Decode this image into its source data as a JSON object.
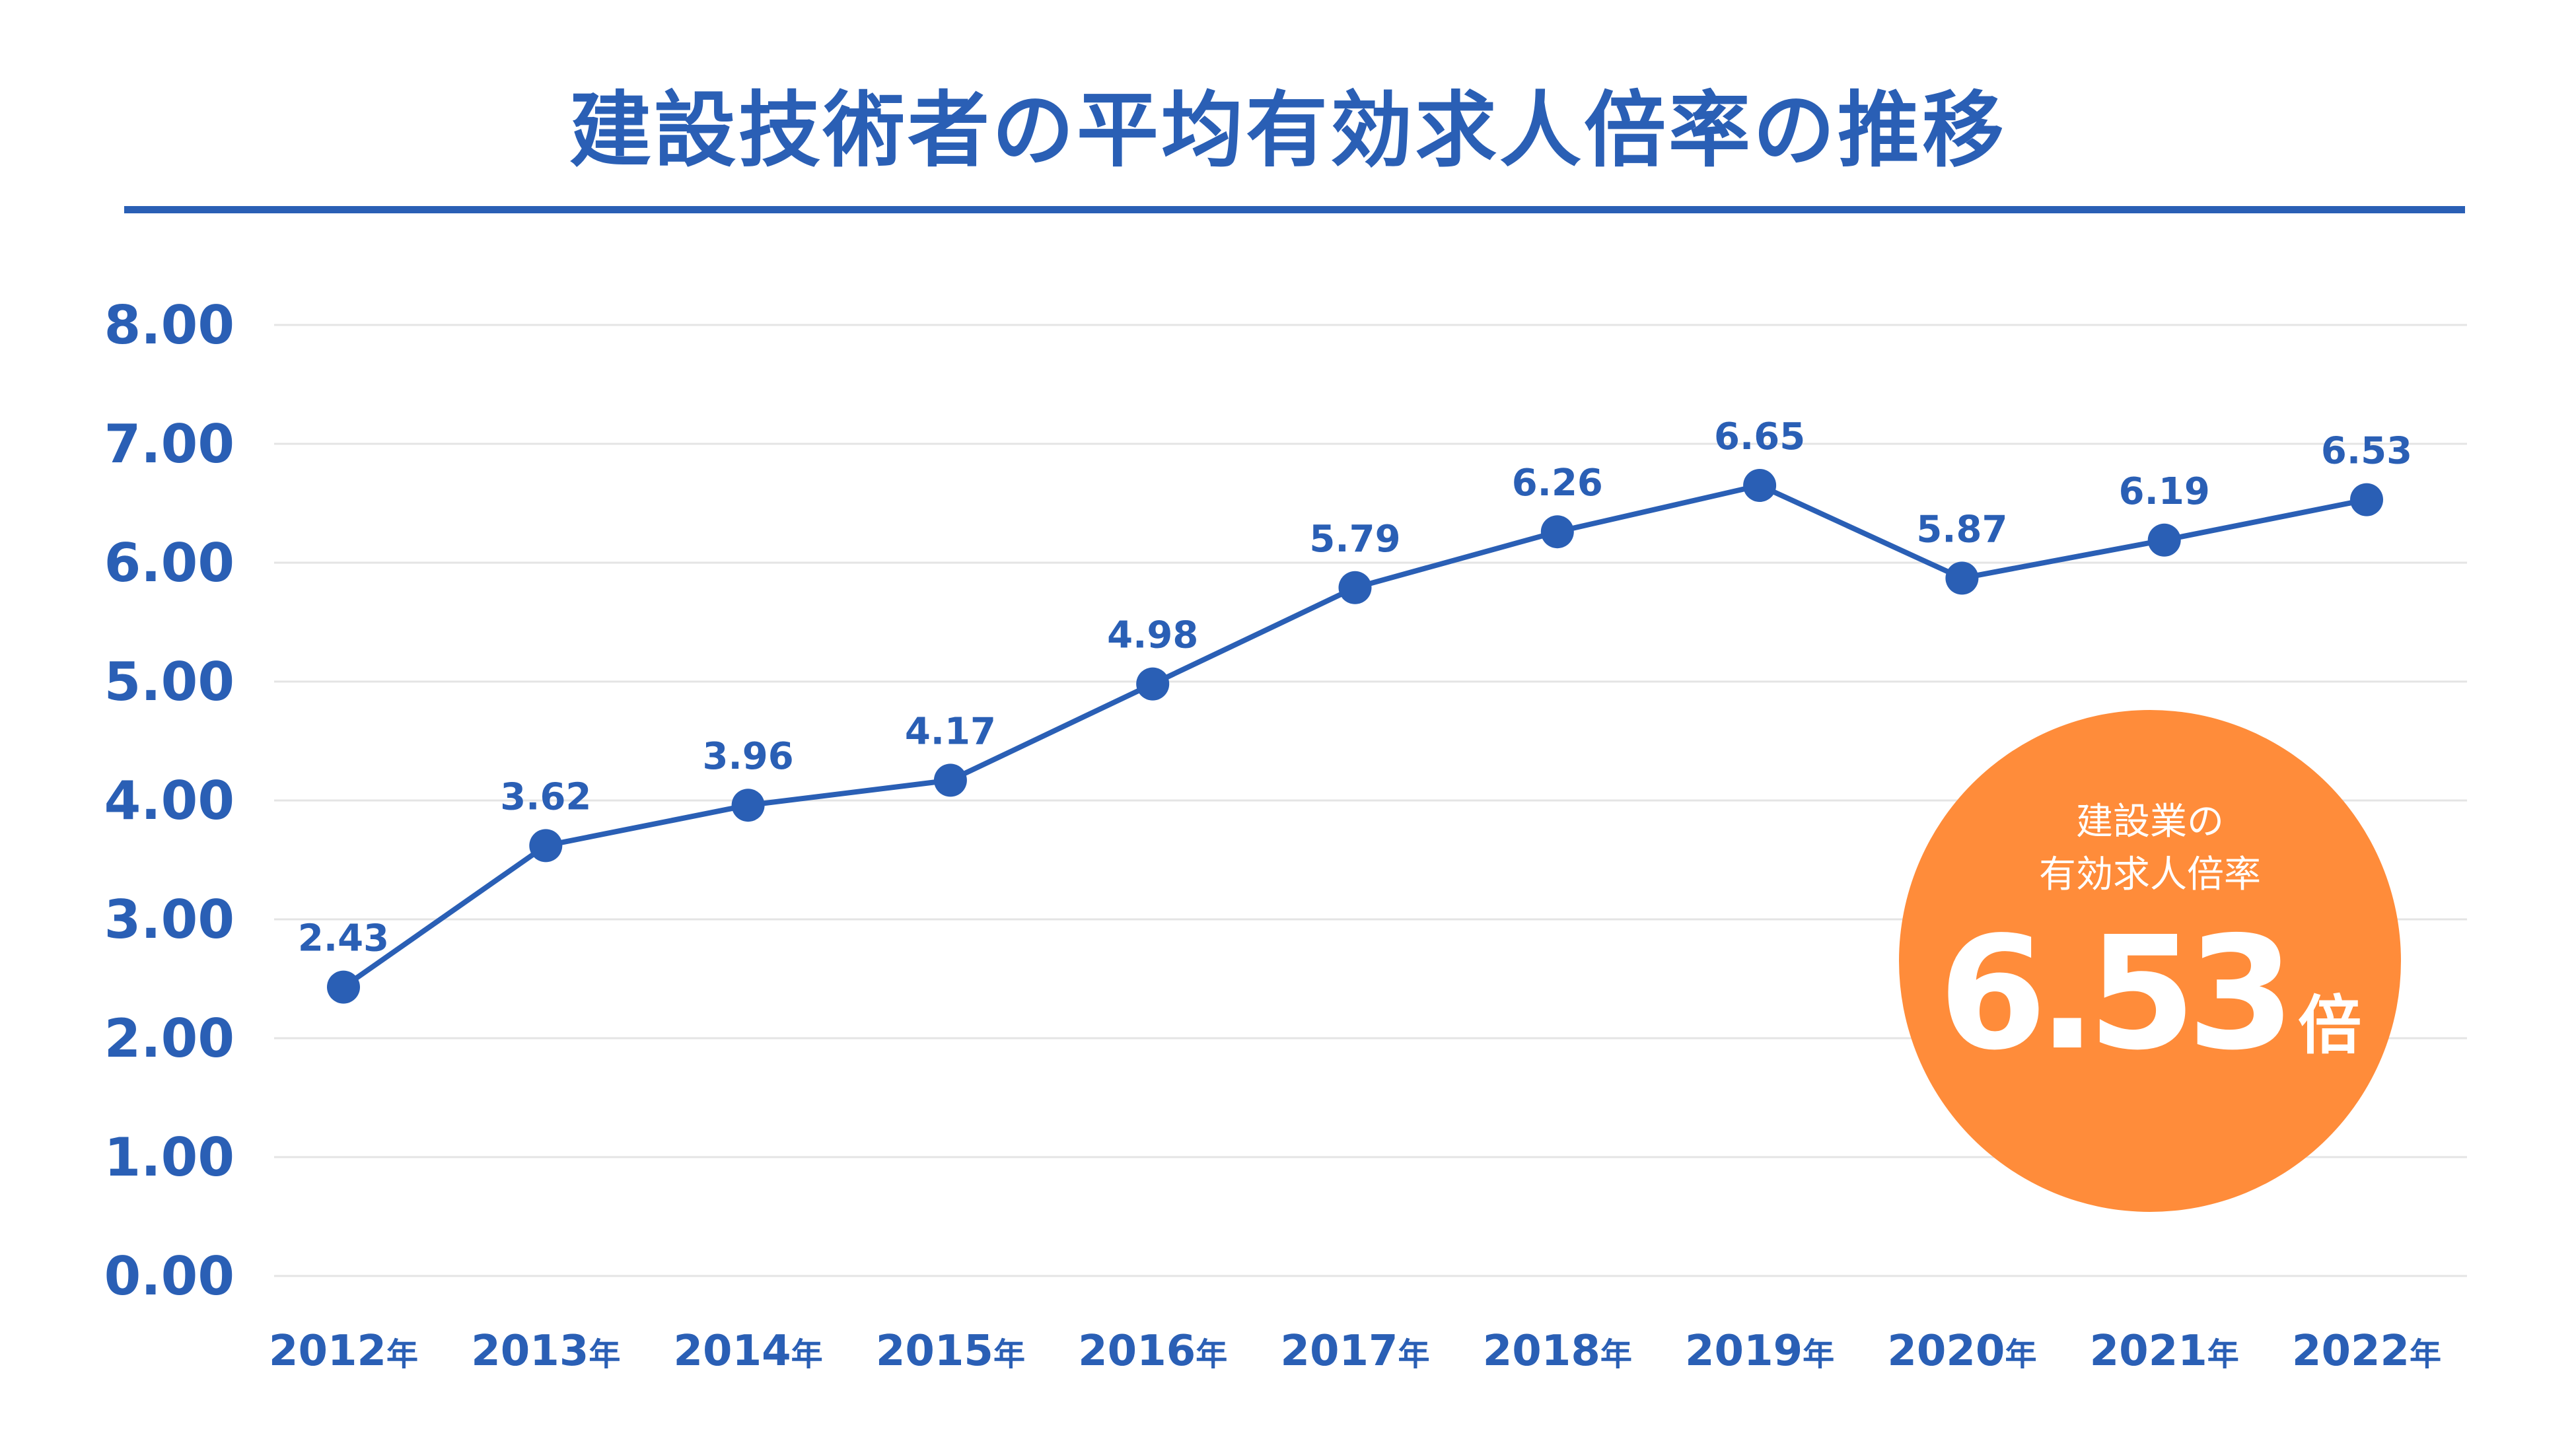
{
  "chart_data": {
    "type": "line",
    "title": "建設技術者の平均有効求人倍率の推移",
    "categories": [
      "2012年",
      "2013年",
      "2014年",
      "2015年",
      "2016年",
      "2017年",
      "2018年",
      "2019年",
      "2020年",
      "2021年",
      "2022年"
    ],
    "category_years": [
      "2012",
      "2013",
      "2014",
      "2015",
      "2016",
      "2017",
      "2018",
      "2019",
      "2020",
      "2021",
      "2022"
    ],
    "category_suffix": "年",
    "series": [
      {
        "name": "建設技術者の平均有効求人倍率",
        "values": [
          2.43,
          3.62,
          3.96,
          4.17,
          4.98,
          5.79,
          6.26,
          6.65,
          5.87,
          6.19,
          6.53
        ],
        "data_labels": [
          "2.43",
          "3.62",
          "3.96",
          "4.17",
          "4.98",
          "5.79",
          "6.26",
          "6.65",
          "5.87",
          "6.19",
          "6.53"
        ]
      }
    ],
    "y_ticks": [
      "0.00",
      "1.00",
      "2.00",
      "3.00",
      "4.00",
      "5.00",
      "6.00",
      "7.00",
      "8.00"
    ],
    "ylim": [
      0,
      8
    ],
    "xlabel": "",
    "ylabel": "",
    "grid": true,
    "legend": "none"
  },
  "callout": {
    "line1": "建設業の",
    "line2": "有効求人倍率",
    "value": "6.53",
    "unit": "倍"
  },
  "colors": {
    "primary": "#2a5fb5",
    "accent": "#ff8c3a",
    "grid": "#e4e4e4",
    "background": "#ffffff"
  }
}
